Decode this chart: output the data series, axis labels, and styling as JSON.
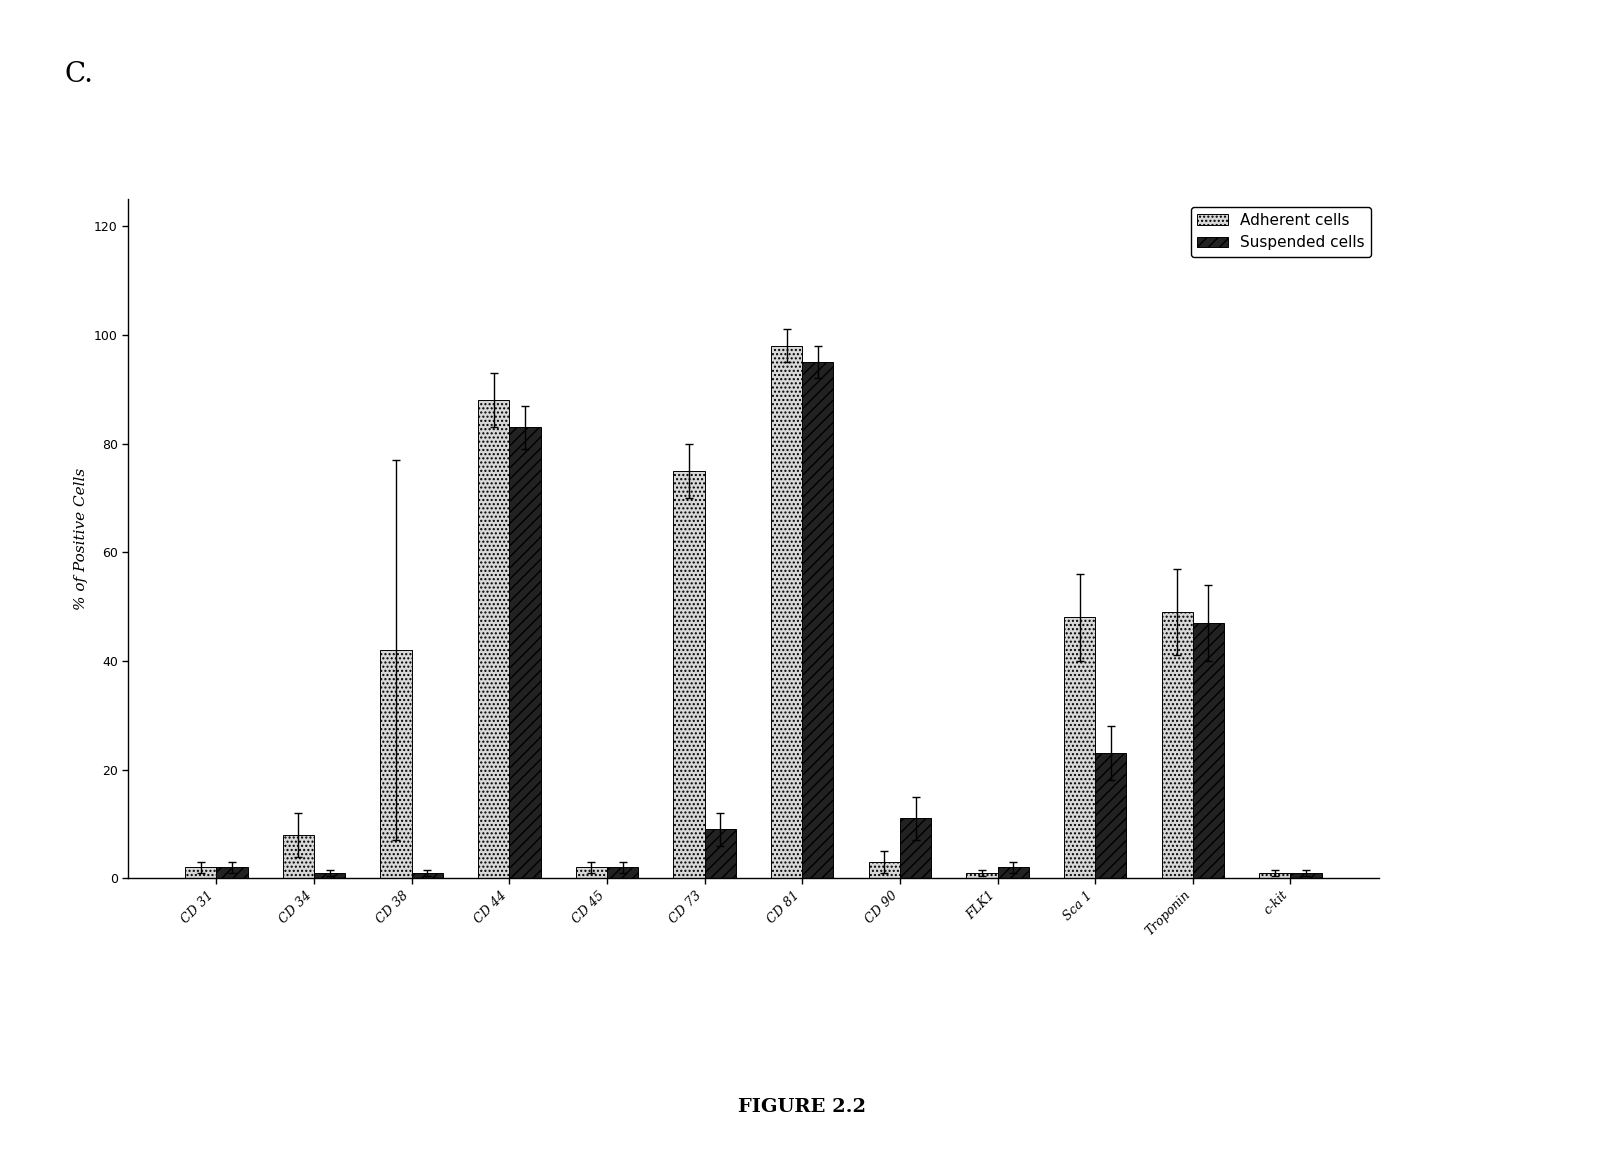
{
  "categories": [
    "CD 31",
    "CD 34",
    "CD 38",
    "CD 44",
    "CD 45",
    "CD 73",
    "CD 81",
    "CD 90",
    "FLK1",
    "Sca 1",
    "Troponin",
    "c-kit"
  ],
  "adherent_values": [
    2,
    8,
    42,
    88,
    2,
    75,
    98,
    3,
    1,
    48,
    49,
    1
  ],
  "adherent_errors": [
    1,
    4,
    35,
    5,
    1,
    5,
    3,
    2,
    0.5,
    8,
    8,
    0.5
  ],
  "suspended_values": [
    2,
    1,
    1,
    83,
    2,
    9,
    95,
    11,
    2,
    23,
    47,
    1
  ],
  "suspended_errors": [
    1,
    0.5,
    0.5,
    4,
    1,
    3,
    3,
    4,
    1,
    5,
    7,
    0.5
  ],
  "ylabel": "% of Positive Cells",
  "ylim": [
    0,
    125
  ],
  "yticks": [
    0,
    20,
    40,
    60,
    80,
    100,
    120
  ],
  "legend_labels": [
    "Adherent cells",
    "Suspended cells"
  ],
  "figure_label": "C.",
  "figure_caption": "FIGURE 2.2",
  "bar_width": 0.32,
  "background_color": "#ffffff",
  "axis_fontsize": 11,
  "tick_fontsize": 9,
  "caption_fontsize": 14
}
